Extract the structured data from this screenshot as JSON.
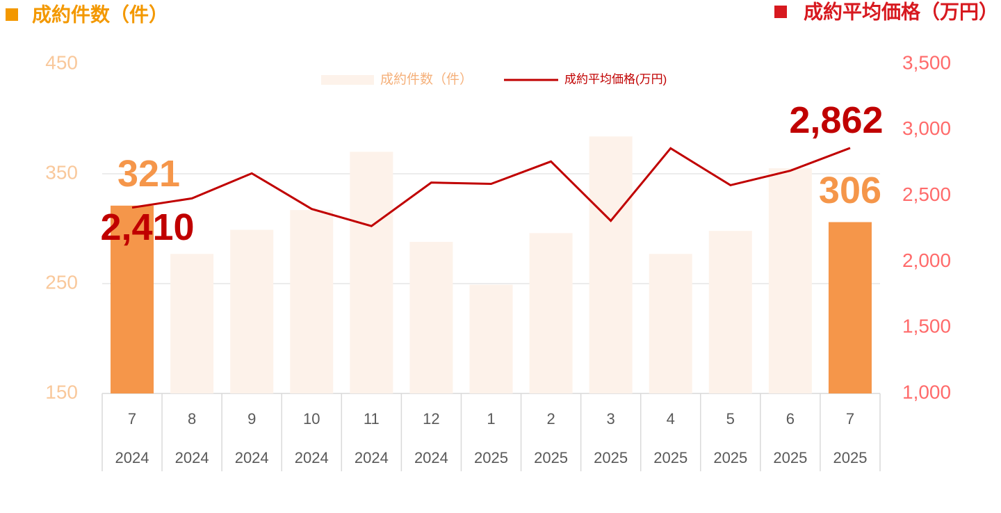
{
  "chart_data": {
    "type": "bar-line",
    "left_title": "成約件数（件）",
    "right_title": "成約平均価格（万円）",
    "left_title_color": "#F39800",
    "right_title_color": "#D7191F",
    "categories": [
      "7",
      "8",
      "9",
      "10",
      "11",
      "12",
      "1",
      "2",
      "3",
      "4",
      "5",
      "6",
      "7"
    ],
    "category_years": [
      "2024",
      "2024",
      "2024",
      "2024",
      "2024",
      "2024",
      "2025",
      "2025",
      "2025",
      "2025",
      "2025",
      "2025",
      "2025"
    ],
    "series": [
      {
        "name": "成約件数（件）",
        "type": "bar",
        "axis": "y",
        "color": "#FDF2EA",
        "colors": [
          "#F5964A",
          "#FDF2EA",
          "#FDF2EA",
          "#FDF2EA",
          "#FDF2EA",
          "#FDF2EA",
          "#FDF2EA",
          "#FDF2EA",
          "#FDF2EA",
          "#FDF2EA",
          "#FDF2EA",
          "#FDF2EA",
          "#F5964A"
        ],
        "values": [
          321,
          277,
          299,
          317,
          370,
          288,
          249,
          296,
          384,
          277,
          298,
          355,
          306
        ],
        "labeled": [
          0,
          12
        ],
        "label_color": "#F5964A"
      },
      {
        "name": "成約平均価格(万円)",
        "type": "line",
        "axis": "y2",
        "color": "#C00000",
        "values": [
          2410,
          2480,
          2670,
          2400,
          2270,
          2600,
          2590,
          2760,
          2310,
          2860,
          2580,
          2690,
          2862
        ],
        "value_labels": [
          "2,410",
          null,
          null,
          null,
          null,
          null,
          null,
          null,
          null,
          null,
          null,
          null,
          "2,862"
        ]
      }
    ],
    "ylim": [
      150,
      450
    ],
    "yticks": [
      150,
      250,
      350,
      450
    ],
    "y2lim": [
      1000,
      3500
    ],
    "y2ticks": [
      {
        "value": 1000,
        "label": "1,000"
      },
      {
        "value": 1500,
        "label": "1,500"
      },
      {
        "value": 2000,
        "label": "2,000"
      },
      {
        "value": 2500,
        "label": "2,500"
      },
      {
        "value": 3000,
        "label": "3,000"
      },
      {
        "value": 3500,
        "label": "3,500"
      }
    ],
    "grid": true
  }
}
